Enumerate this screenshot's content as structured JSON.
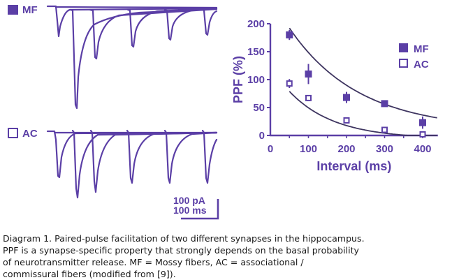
{
  "traces_panel": {
    "mf_label": "MF",
    "ac_label": "AC",
    "scale_bar_current": "100 pA",
    "scale_bar_time": "100 ms"
  },
  "chart_data": {
    "type": "scatter",
    "title": "",
    "xlabel": "Interval (ms)",
    "ylabel": "PPF (%)",
    "xlim": [
      0,
      440
    ],
    "ylim": [
      0,
      200
    ],
    "xticks": [
      0,
      100,
      200,
      300,
      400
    ],
    "yticks": [
      0,
      50,
      100,
      150,
      200
    ],
    "grid": false,
    "legend_position": "upper right",
    "series": [
      {
        "name": "MF",
        "marker": "filled-square",
        "x": [
          50,
          100,
          200,
          300,
          400
        ],
        "y": [
          180,
          110,
          68,
          57,
          23
        ],
        "err": [
          9,
          18,
          10,
          5,
          11
        ],
        "fit": "exponential decay"
      },
      {
        "name": "AC",
        "marker": "open-square",
        "x": [
          50,
          100,
          200,
          300,
          400
        ],
        "y": [
          93,
          67,
          27,
          10,
          2
        ],
        "err": [
          8,
          3,
          2,
          2,
          2
        ],
        "fit": "exponential decay"
      }
    ],
    "color": "#5b3fa6"
  },
  "caption": {
    "lines": [
      "Diagram 1. Paired-pulse facilitation of two different synapses in the hippocampus.",
      "PPF is a synapse-specific property that strongly depends on the basal probability",
      "of neurotransmitter release. MF = Mossy fibers, AC = associational /",
      "commissural fibers (modified from [9])."
    ]
  }
}
